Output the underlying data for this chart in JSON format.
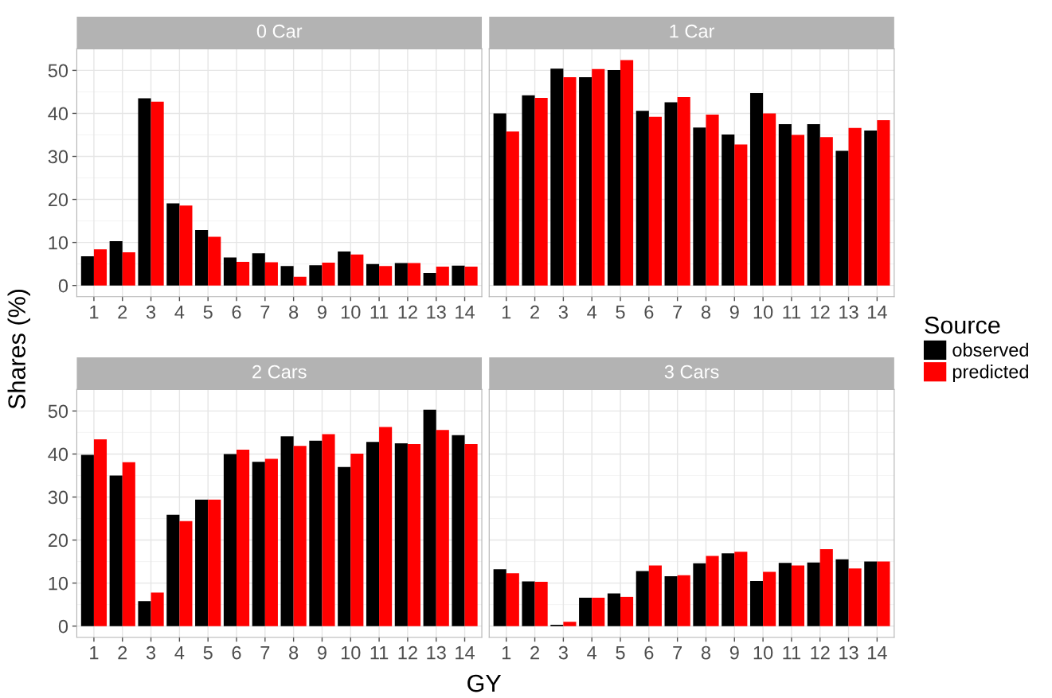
{
  "chart_data": [
    {
      "type": "bar",
      "title": "0 Car",
      "ylabel": "Shares (%)",
      "legend": "right",
      "legend_title": "Source",
      "categories": [
        "1",
        "2",
        "3",
        "4",
        "5",
        "6",
        "7",
        "8",
        "9",
        "10",
        "11",
        "12",
        "13",
        "14"
      ],
      "ylim": [
        -2.6,
        55
      ],
      "yticks": [
        0,
        10,
        20,
        30,
        40,
        50
      ],
      "grid": true,
      "series": [
        {
          "name": "observed",
          "color": "#000000",
          "values": [
            6.8,
            10.3,
            43.5,
            19.1,
            12.9,
            6.5,
            7.5,
            4.5,
            4.7,
            7.9,
            5.0,
            5.2,
            2.9,
            4.6
          ]
        },
        {
          "name": "predicted",
          "color": "#ff0000",
          "values": [
            8.4,
            7.7,
            42.7,
            18.6,
            11.3,
            5.5,
            5.4,
            2.0,
            5.3,
            7.2,
            4.5,
            5.2,
            4.4,
            4.4
          ]
        }
      ]
    },
    {
      "type": "bar",
      "title": "1 Car",
      "tick_labels": "x",
      "categories": [
        "1",
        "2",
        "3",
        "4",
        "5",
        "6",
        "7",
        "8",
        "9",
        "10",
        "11",
        "12",
        "13",
        "14"
      ],
      "ylim": [
        -2.6,
        55
      ],
      "yticks": [
        0,
        10,
        20,
        30,
        40,
        50
      ],
      "grid": true,
      "series": [
        {
          "color": "#000000",
          "values": [
            40.0,
            44.2,
            50.4,
            48.4,
            50.1,
            40.6,
            42.6,
            36.7,
            35.1,
            44.7,
            37.5,
            37.5,
            31.3,
            36.0
          ]
        },
        {
          "color": "#ff0000",
          "values": [
            35.8,
            43.6,
            48.4,
            50.3,
            52.4,
            39.2,
            43.8,
            39.7,
            32.8,
            40.0,
            35.0,
            34.5,
            36.6,
            38.4
          ]
        }
      ]
    },
    {
      "type": "bar",
      "title": "2 Cars",
      "xlabel": "GY",
      "categories": [
        "1",
        "2",
        "3",
        "4",
        "5",
        "6",
        "7",
        "8",
        "9",
        "10",
        "11",
        "12",
        "13",
        "14"
      ],
      "ylim": [
        -2.6,
        55
      ],
      "yticks": [
        0,
        10,
        20,
        30,
        40,
        50
      ],
      "grid": true,
      "series": [
        {
          "color": "#000000",
          "values": [
            39.8,
            35.0,
            5.8,
            25.9,
            29.4,
            40.0,
            38.2,
            44.1,
            43.1,
            37.0,
            42.8,
            42.5,
            50.3,
            44.4
          ]
        },
        {
          "color": "#ff0000",
          "values": [
            43.4,
            38.1,
            7.8,
            24.4,
            29.4,
            41.0,
            38.9,
            41.9,
            44.6,
            40.1,
            46.3,
            42.3,
            45.6,
            42.3
          ]
        }
      ]
    },
    {
      "type": "bar",
      "title": "3 Cars",
      "tick_labels": "x",
      "categories": [
        "1",
        "2",
        "3",
        "4",
        "5",
        "6",
        "7",
        "8",
        "9",
        "10",
        "11",
        "12",
        "13",
        "14"
      ],
      "ylim": [
        -2.6,
        55
      ],
      "yticks": [
        0,
        10,
        20,
        30,
        40,
        50
      ],
      "grid": true,
      "series": [
        {
          "color": "#000000",
          "values": [
            13.2,
            10.4,
            0.3,
            6.6,
            7.6,
            12.8,
            11.6,
            14.6,
            16.9,
            10.5,
            14.7,
            14.8,
            15.5,
            15.0
          ]
        },
        {
          "color": "#ff0000",
          "values": [
            12.3,
            10.3,
            1.0,
            6.6,
            6.8,
            14.1,
            11.8,
            16.3,
            17.3,
            12.6,
            14.1,
            17.9,
            13.4,
            15.0
          ]
        }
      ]
    }
  ]
}
